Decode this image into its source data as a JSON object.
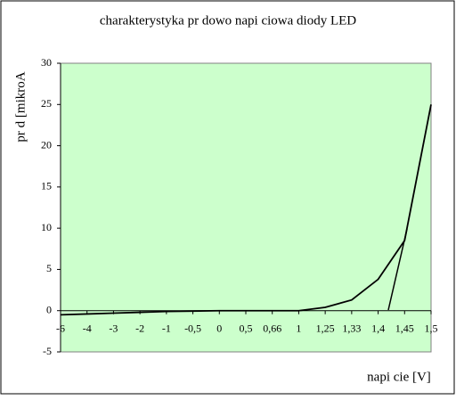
{
  "chart_data": {
    "type": "line",
    "title": "charakterystyka pr  dowo napi  ciowa diody LED",
    "x_label": "napi  cie [V]",
    "y_label": "pr  d [mikroA",
    "categories": [
      "-6",
      "-4",
      "-3",
      "-2",
      "-1",
      "-0,5",
      "0",
      "0,5",
      "0,66",
      "1",
      "1,25",
      "1,33",
      "1,4",
      "1,45",
      "1,5"
    ],
    "values": [
      -0.5,
      -0.4,
      -0.3,
      -0.2,
      -0.1,
      -0.05,
      0,
      0,
      0,
      0,
      0.4,
      1.3,
      3.8,
      8.5,
      25
    ],
    "color": "#000000",
    "ylim": [
      -5,
      30
    ],
    "yticks": [
      -5,
      0,
      5,
      10,
      15,
      20,
      25,
      30
    ],
    "plot_background": "#ccffcc"
  }
}
